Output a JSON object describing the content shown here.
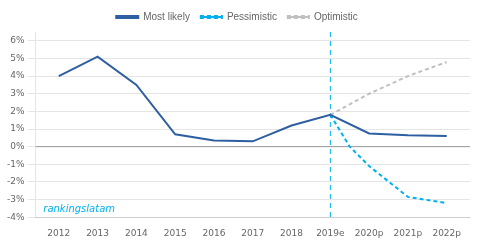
{
  "chart_data": {
    "type": "line",
    "series": [
      {
        "name": "Most likely",
        "color": "#2e5fa3",
        "line_style": "solid",
        "x": [
          2012,
          2013,
          2014,
          2015,
          2016,
          2017,
          2018,
          2019,
          2020,
          2021,
          2022
        ],
        "values": [
          4.0,
          5.1,
          3.5,
          0.7,
          0.35,
          0.3,
          1.2,
          1.8,
          0.75,
          0.65,
          0.6
        ]
      },
      {
        "name": "Pessimistic",
        "color": "#00b0f0",
        "line_style": "dashed",
        "x": [
          2019,
          2019.5,
          2020,
          2021,
          2022
        ],
        "values": [
          1.8,
          0.0,
          -1.1,
          -2.85,
          -3.2
        ]
      },
      {
        "name": "Optimistic",
        "color": "#c0c0c0",
        "line_style": "dashed",
        "x": [
          2019,
          2020,
          2021,
          2022
        ],
        "values": [
          1.8,
          3.0,
          4.0,
          4.8
        ]
      }
    ],
    "xlim": [
      2011.4,
      2022.6
    ],
    "xticks": [
      2012,
      2013,
      2014,
      2015,
      2016,
      2017,
      2018,
      {
        "value": 2019,
        "label": "2019e"
      },
      {
        "value": 2020,
        "label": "2020p"
      },
      {
        "value": 2021,
        "label": "2021p"
      },
      {
        "value": 2022,
        "label": "2022p"
      }
    ],
    "ylim": [
      -4,
      6.5
    ],
    "yticks": [
      {
        "value": -4,
        "label": "-4%"
      },
      {
        "value": -3,
        "label": "-3%"
      },
      {
        "value": -2,
        "label": "-2%"
      },
      {
        "value": -1,
        "label": "-1%"
      },
      {
        "value": 0,
        "label": "0%"
      },
      {
        "value": 1,
        "label": "1%"
      },
      {
        "value": 2,
        "label": "2%"
      },
      {
        "value": 3,
        "label": "3%"
      },
      {
        "value": 4,
        "label": "4%"
      },
      {
        "value": 5,
        "label": "5%"
      },
      {
        "value": 6,
        "label": "6%"
      }
    ],
    "grid": "y",
    "legend": "top",
    "annotations": [
      {
        "type": "vline",
        "x": 2019,
        "color": "#00b0f0",
        "line_style": "dashed"
      },
      {
        "type": "hline",
        "y": 0,
        "color": "#999999",
        "line_style": "solid"
      },
      {
        "type": "text",
        "text": "rankingslatam",
        "x": 2011.6,
        "y": -3.85,
        "color": "#00b0f0"
      }
    ]
  }
}
